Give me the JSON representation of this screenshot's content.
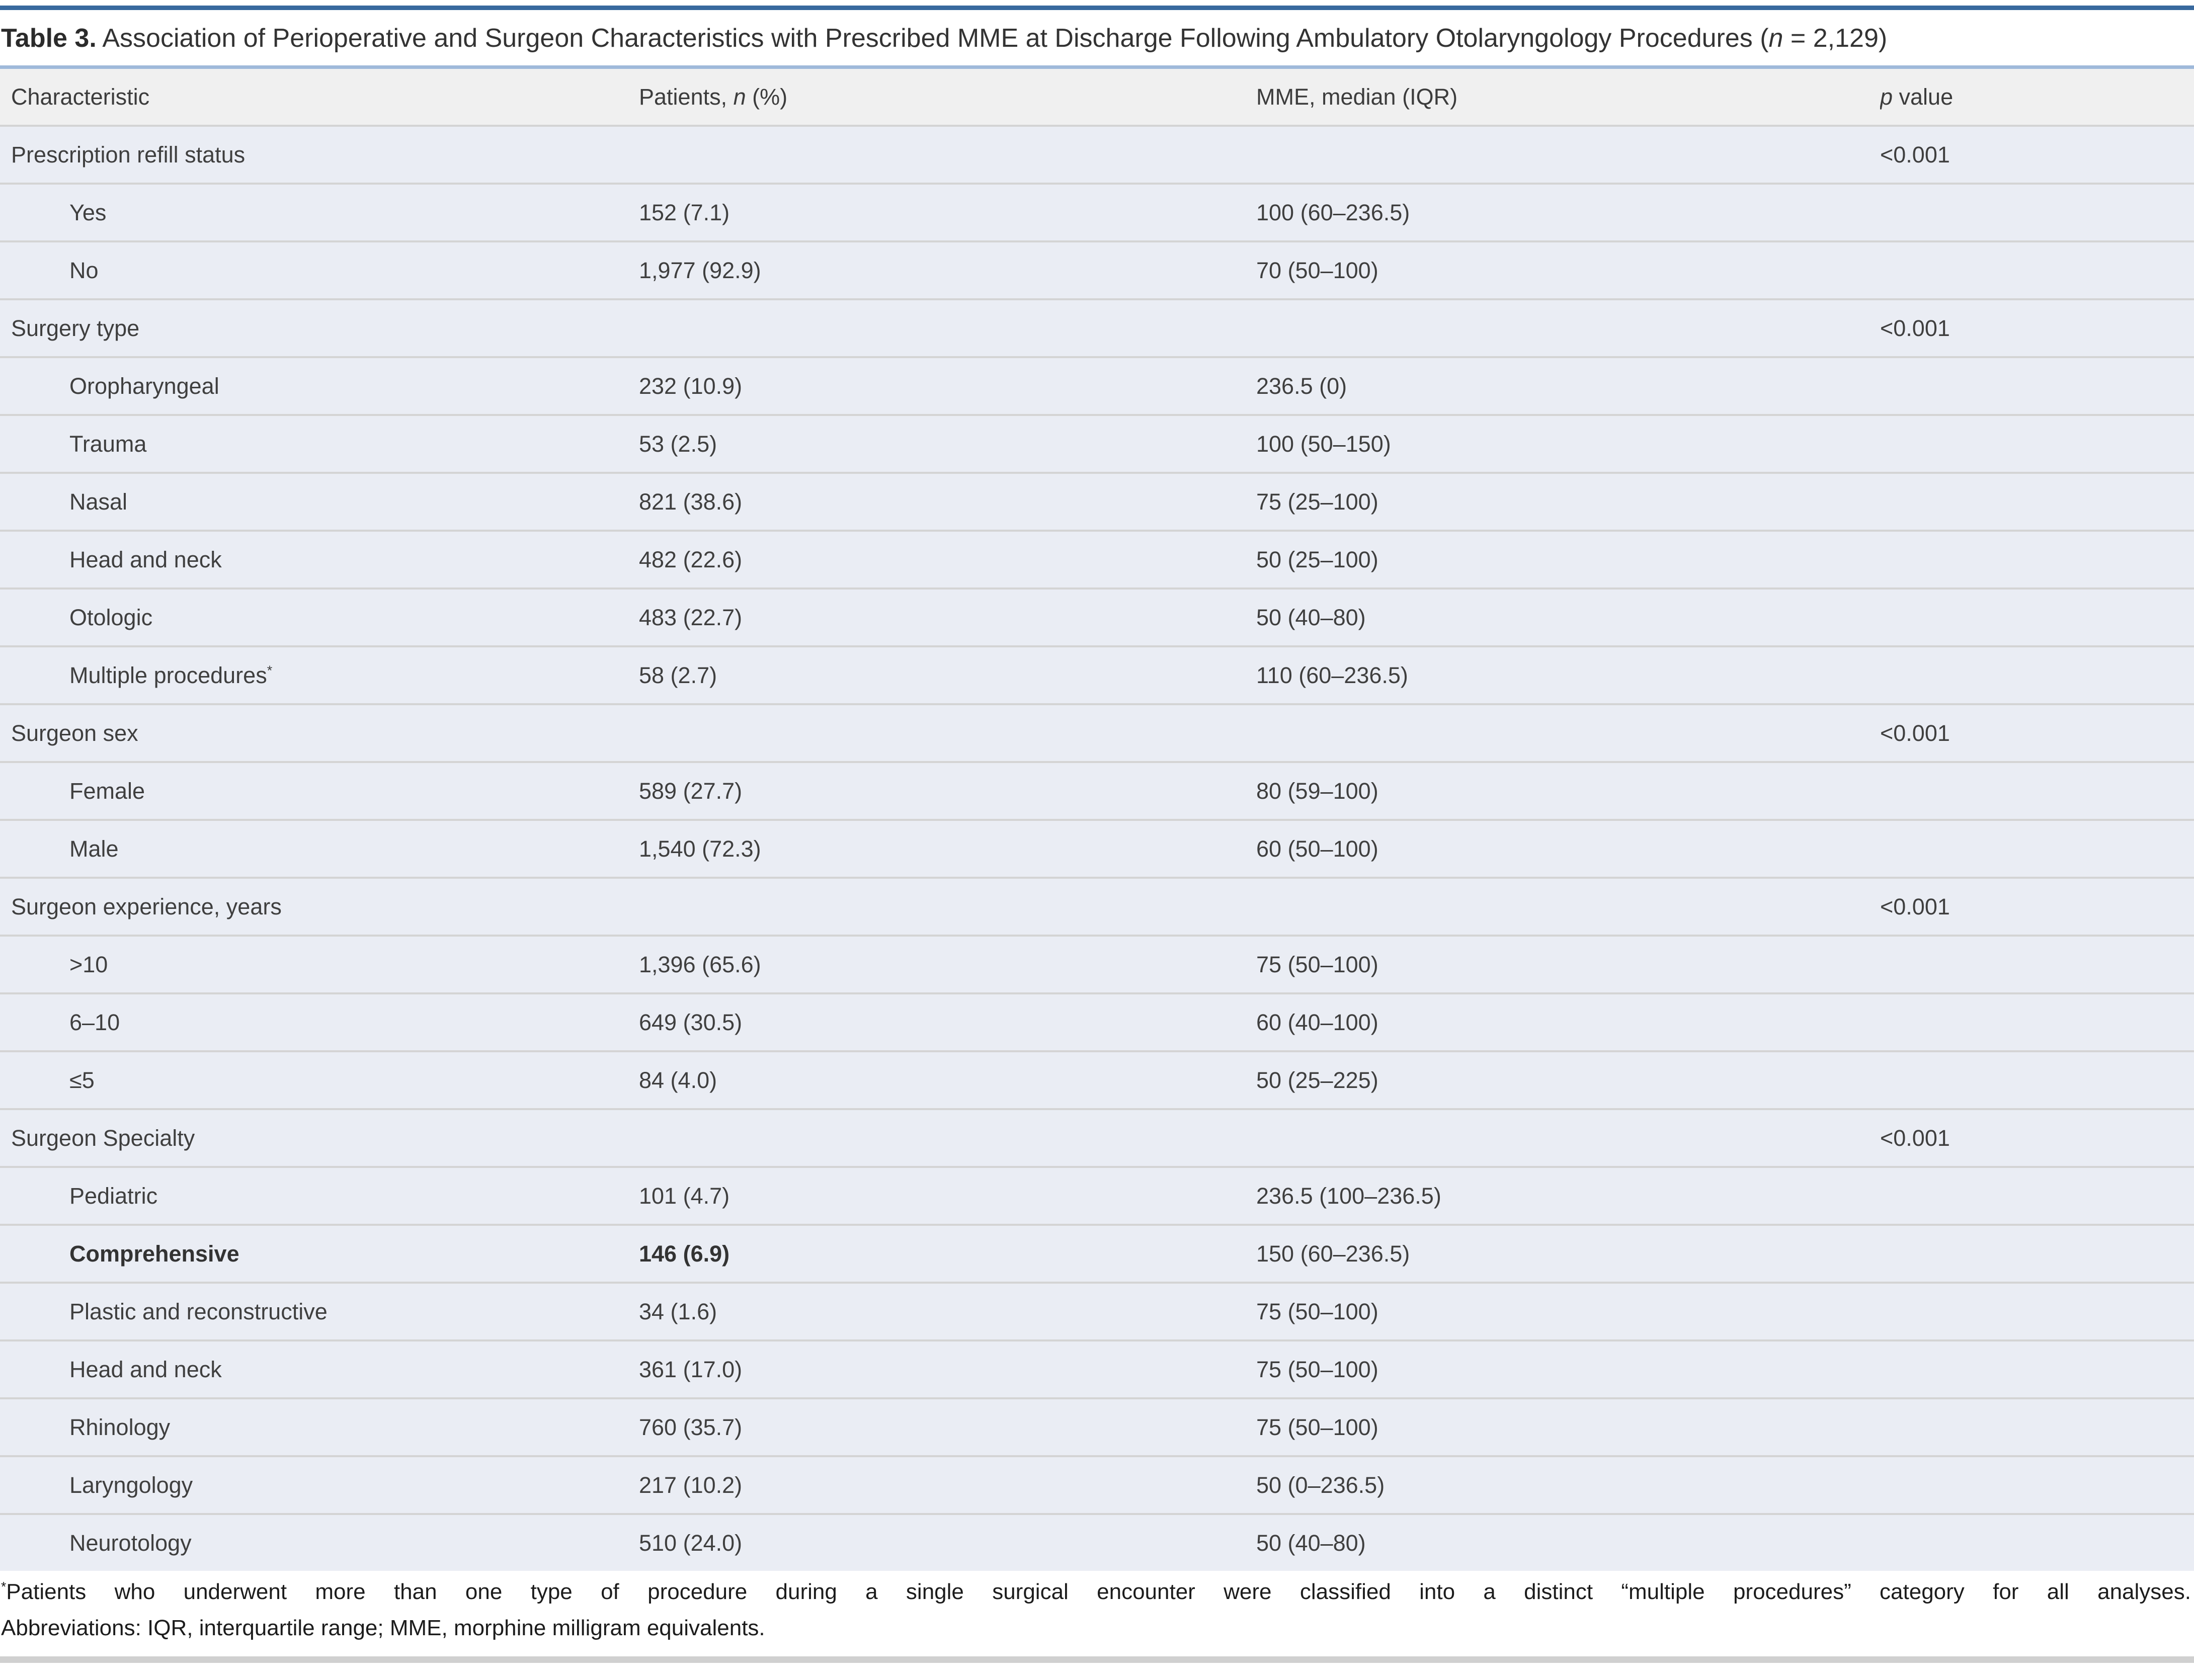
{
  "title": {
    "label": "Table 3.",
    "text": " Association of Perioperative and Surgeon Characteristics with Prescribed MME at Discharge Following Ambulatory Otolaryngology Procedures (",
    "n_italic": "n",
    "suffix": " = 2,129)"
  },
  "header": {
    "characteristic": "Characteristic",
    "patients_prefix": "Patients, ",
    "patients_n": "n",
    "patients_suffix": " (%)",
    "mme": "MME, median (IQR)",
    "p_italic": "p",
    "p_suffix": " value"
  },
  "table": {
    "rows": [
      {
        "label": "Prescription refill status",
        "sup": "",
        "patients": "",
        "mme": "",
        "p": "<0.001",
        "level": "category",
        "emphasis": false
      },
      {
        "label": "Yes",
        "sup": "",
        "patients": "152 (7.1)",
        "mme": "100 (60–236.5)",
        "p": "",
        "level": "sub",
        "emphasis": false
      },
      {
        "label": "No",
        "sup": "",
        "patients": "1,977 (92.9)",
        "mme": "70 (50–100)",
        "p": "",
        "level": "sub",
        "emphasis": false
      },
      {
        "label": "Surgery type",
        "sup": "",
        "patients": "",
        "mme": "",
        "p": "<0.001",
        "level": "category",
        "emphasis": false
      },
      {
        "label": "Oropharyngeal",
        "sup": "",
        "patients": "232 (10.9)",
        "mme": "236.5 (0)",
        "p": "",
        "level": "sub",
        "emphasis": false
      },
      {
        "label": "Trauma",
        "sup": "",
        "patients": "53 (2.5)",
        "mme": "100 (50–150)",
        "p": "",
        "level": "sub",
        "emphasis": false
      },
      {
        "label": "Nasal",
        "sup": "",
        "patients": "821 (38.6)",
        "mme": "75 (25–100)",
        "p": "",
        "level": "sub",
        "emphasis": false
      },
      {
        "label": "Head and neck",
        "sup": "",
        "patients": "482 (22.6)",
        "mme": "50 (25–100)",
        "p": "",
        "level": "sub",
        "emphasis": false
      },
      {
        "label": "Otologic",
        "sup": "",
        "patients": "483 (22.7)",
        "mme": "50 (40–80)",
        "p": "",
        "level": "sub",
        "emphasis": false
      },
      {
        "label": "Multiple procedures",
        "sup": "*",
        "patients": "58 (2.7)",
        "mme": "110 (60–236.5)",
        "p": "",
        "level": "sub",
        "emphasis": false
      },
      {
        "label": "Surgeon sex",
        "sup": "",
        "patients": "",
        "mme": "",
        "p": "<0.001",
        "level": "category",
        "emphasis": false
      },
      {
        "label": "Female",
        "sup": "",
        "patients": "589 (27.7)",
        "mme": "80 (59–100)",
        "p": "",
        "level": "sub",
        "emphasis": false
      },
      {
        "label": "Male",
        "sup": "",
        "patients": "1,540 (72.3)",
        "mme": "60 (50–100)",
        "p": "",
        "level": "sub",
        "emphasis": false
      },
      {
        "label": "Surgeon experience, years",
        "sup": "",
        "patients": "",
        "mme": "",
        "p": "<0.001",
        "level": "category",
        "emphasis": false
      },
      {
        "label": ">10",
        "sup": "",
        "patients": "1,396 (65.6)",
        "mme": "75 (50–100)",
        "p": "",
        "level": "sub",
        "emphasis": false
      },
      {
        "label": "6–10",
        "sup": "",
        "patients": "649 (30.5)",
        "mme": "60 (40–100)",
        "p": "",
        "level": "sub",
        "emphasis": false
      },
      {
        "label": "≤5",
        "sup": "",
        "patients": "84 (4.0)",
        "mme": "50 (25–225)",
        "p": "",
        "level": "sub",
        "emphasis": false
      },
      {
        "label": "Surgeon Specialty",
        "sup": "",
        "patients": "",
        "mme": "",
        "p": "<0.001",
        "level": "category",
        "emphasis": false
      },
      {
        "label": "Pediatric",
        "sup": "",
        "patients": "101 (4.7)",
        "mme": "236.5 (100–236.5)",
        "p": "",
        "level": "sub",
        "emphasis": false
      },
      {
        "label": "Comprehensive",
        "sup": "",
        "patients": "146 (6.9)",
        "mme": "150 (60–236.5)",
        "p": "",
        "level": "sub",
        "emphasis": true
      },
      {
        "label": "Plastic and reconstructive",
        "sup": "",
        "patients": "34 (1.6)",
        "mme": "75 (50–100)",
        "p": "",
        "level": "sub",
        "emphasis": false
      },
      {
        "label": "Head and neck",
        "sup": "",
        "patients": "361 (17.0)",
        "mme": "75 (50–100)",
        "p": "",
        "level": "sub",
        "emphasis": false
      },
      {
        "label": "Rhinology",
        "sup": "",
        "patients": "760 (35.7)",
        "mme": "75 (50–100)",
        "p": "",
        "level": "sub",
        "emphasis": false
      },
      {
        "label": "Laryngology",
        "sup": "",
        "patients": "217 (10.2)",
        "mme": "50 (0–236.5)",
        "p": "",
        "level": "sub",
        "emphasis": false
      },
      {
        "label": "Neurotology",
        "sup": "",
        "patients": "510 (24.0)",
        "mme": "50 (40–80)",
        "p": "",
        "level": "sub",
        "emphasis": false
      }
    ]
  },
  "footnotes": {
    "line1_sup": "*",
    "line1": "Patients who underwent more than one type of procedure during a single surgical encounter were classified into a distinct “multiple procedures” category for all analyses.",
    "line2": "Abbreviations: IQR, interquartile range; MME, morphine milligram equivalents."
  },
  "colors": {
    "top_accent": "#38699e",
    "header_accent": "#9fb9da",
    "header_row_bg": "#f0f0f0",
    "data_row_bg": "#eaedf4",
    "row_separator": "#d4d4d4",
    "bottom_bar": "#d0d0d0",
    "text": "#3f3f3f"
  }
}
